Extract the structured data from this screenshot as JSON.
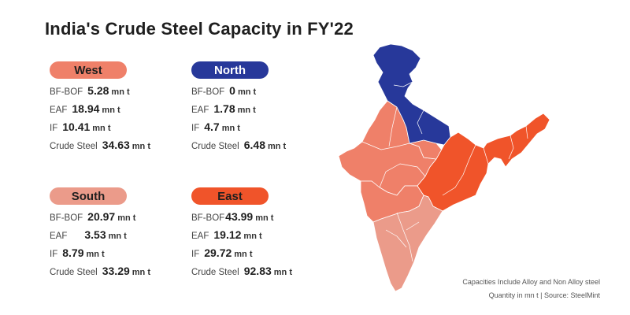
{
  "title": "India's Crude Steel Capacity in FY'22",
  "colors": {
    "west": "#ef8069",
    "north": "#27389a",
    "south": "#eb9b8a",
    "east": "#f0542a"
  },
  "regions": {
    "west": {
      "name": "West",
      "rows": [
        {
          "label": "BF-BOF",
          "value": "5.28",
          "unit": "mn t"
        },
        {
          "label": "EAF",
          "value": "18.94",
          "unit": "mn t"
        },
        {
          "label": "IF",
          "value": "10.41",
          "unit": "mn t"
        },
        {
          "label": "Crude Steel",
          "value": "34.63",
          "unit": "mn t"
        }
      ]
    },
    "north": {
      "name": "North",
      "rows": [
        {
          "label": "BF-BOF",
          "value": "0",
          "unit": "mn t"
        },
        {
          "label": "EAF",
          "value": "1.78",
          "unit": "mn t"
        },
        {
          "label": "IF",
          "value": "4.7",
          "unit": "mn t"
        },
        {
          "label": "Crude Steel",
          "value": "6.48",
          "unit": "mn t"
        }
      ]
    },
    "south": {
      "name": "South",
      "rows": [
        {
          "label": "BF-BOF",
          "value": "20.97",
          "unit": "mn t"
        },
        {
          "label": "EAF",
          "value": "3.53",
          "unit": "mn t"
        },
        {
          "label": "IF",
          "value": "8.79",
          "unit": "mn t"
        },
        {
          "label": "Crude Steel",
          "value": "33.29",
          "unit": "mn t"
        }
      ]
    },
    "east": {
      "name": "East",
      "rows": [
        {
          "label": "BF-BOF",
          "value": "43.99",
          "unit": "mn t"
        },
        {
          "label": "EAF",
          "value": "19.12",
          "unit": "mn t"
        },
        {
          "label": "IF",
          "value": "29.72",
          "unit": "mn t"
        },
        {
          "label": "Crude Steel",
          "value": "92.83",
          "unit": "mn t"
        }
      ]
    }
  },
  "notes": {
    "line1": "Capacities Include Alloy and Non Alloy steel",
    "line2": "Quantity in mn t  |  Source: SteelMint"
  },
  "chart_data": {
    "type": "table",
    "title": "India's Crude Steel Capacity in FY'22",
    "columns": [
      "BF-BOF",
      "EAF",
      "IF",
      "Crude Steel"
    ],
    "unit": "mn t",
    "series": [
      {
        "name": "West",
        "values": [
          5.28,
          18.94,
          10.41,
          34.63
        ]
      },
      {
        "name": "North",
        "values": [
          0,
          1.78,
          4.7,
          6.48
        ]
      },
      {
        "name": "South",
        "values": [
          20.97,
          3.53,
          8.79,
          33.29
        ]
      },
      {
        "name": "East",
        "values": [
          43.99,
          19.12,
          29.72,
          92.83
        ]
      }
    ]
  }
}
